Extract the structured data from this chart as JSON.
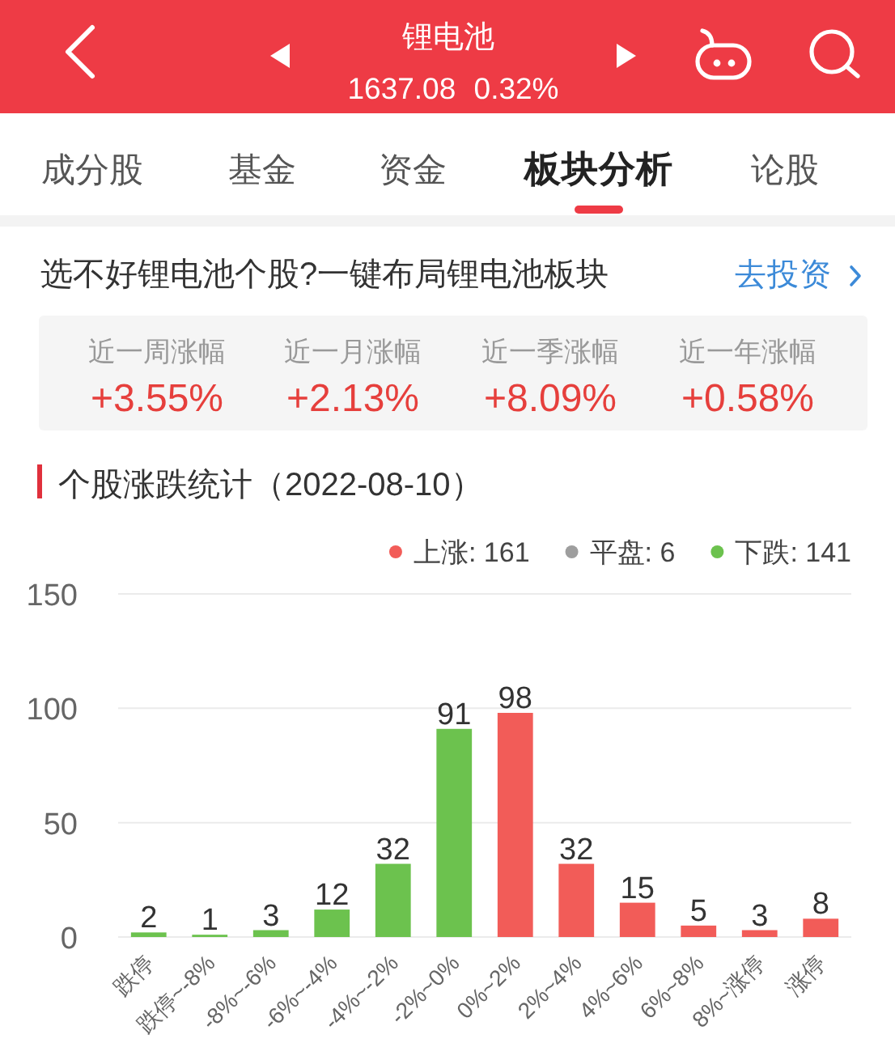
{
  "chart_data": [
    {
      "type": "other",
      "title": "锂电池",
      "subtitle": "1637.08 0.32%",
      "annotations": [
        "成分股",
        "基金",
        "资金",
        "板块分析",
        "论股",
        "选不好锂电池个股?一键布局锂电池板块",
        "去投资",
        "近一周涨幅",
        "+3.55%",
        "近一月涨幅",
        "+2.13%",
        "近一季涨幅",
        "+8.09%",
        "近一年涨幅",
        "+0.58%"
      ]
    },
    {
      "type": "bar",
      "title": "个股涨跌统计（2022-08-10）",
      "categories": [
        "跌停",
        "跌停~-8%",
        "-8%~-6%",
        "-6%~-4%",
        "-4%~-2%",
        "-2%~0%",
        "0%~2%",
        "2%~4%",
        "4%~6%",
        "6%~8%",
        "8%~涨停",
        "涨停"
      ],
      "stacked": true,
      "series": [
        {
          "name": "上涨: 161",
          "color": "#f25c58",
          "values": [
            null,
            null,
            null,
            null,
            null,
            null,
            98,
            32,
            15,
            5,
            3,
            8
          ]
        },
        {
          "name": "平盘: 6",
          "color": "#9e9e9e",
          "values": [
            null,
            null,
            null,
            null,
            null,
            null,
            null,
            null,
            null,
            null,
            null,
            null
          ]
        },
        {
          "name": "下跌: 141",
          "color": "#6cc24e",
          "values": [
            2,
            1,
            3,
            12,
            32,
            91,
            null,
            null,
            null,
            null,
            null,
            null
          ]
        }
      ],
      "ylim": [
        0,
        150
      ],
      "yticks": [
        0,
        50,
        100,
        150
      ],
      "grid": "y",
      "legend": "top right",
      "data_labels": true
    }
  ]
}
